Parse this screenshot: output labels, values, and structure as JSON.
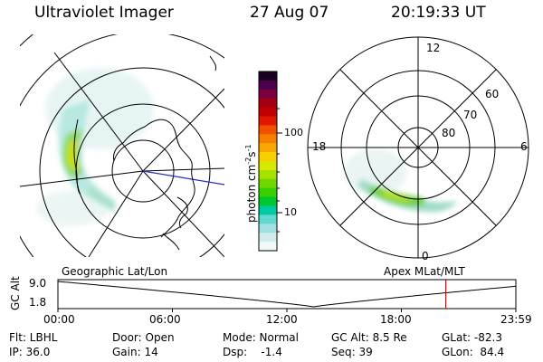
{
  "header": {
    "instrument": "Ultraviolet Imager",
    "date": "27 Aug 07",
    "time": "20:19:33 UT"
  },
  "left_panel": {
    "label": "Geographic Lat/Lon"
  },
  "right_panel": {
    "label": "Apex MLat/MLT",
    "mlt_labels": [
      "12",
      "18",
      "6",
      "0"
    ],
    "lat_labels": [
      "60",
      "70",
      "80"
    ]
  },
  "colorbar": {
    "unit_main": "photon cm",
    "unit_sup1": "-2",
    "unit_mid": "s",
    "unit_sup2": "-1",
    "ticks": [
      "100",
      "10"
    ],
    "colors": [
      "#1a0020",
      "#4a004a",
      "#7a0040",
      "#a00010",
      "#c00000",
      "#e01800",
      "#f05000",
      "#f88000",
      "#f8a800",
      "#f8d000",
      "#d8e800",
      "#a8e000",
      "#70d800",
      "#38d000",
      "#00c830",
      "#00c8a0",
      "#60d8d0",
      "#a0e0e0",
      "#d0ecec",
      "#f0f8f8"
    ]
  },
  "timeline": {
    "axis_label": "GC Alt",
    "y_ticks": [
      "9.0",
      "1.8"
    ],
    "x_ticks": [
      "00:00",
      "06:00",
      "12:00",
      "18:00",
      "23:59"
    ],
    "current_time_marker_hours": 20.33
  },
  "info": {
    "filter": "Flt: LBHL",
    "ip": "IP: 36.0",
    "door": "Door: Open",
    "gain": "Gain: 14",
    "mode": "Mode: Normal",
    "dsp": "Dsp:    -1.4",
    "gcalt": "GC Alt: 8.5 Re",
    "seq": "Seq: 39",
    "glat": "GLat: -82.3",
    "glon": "GLon:  84.4"
  }
}
